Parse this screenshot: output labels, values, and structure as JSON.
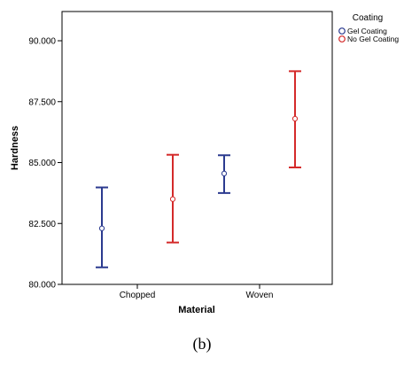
{
  "chart_data": {
    "type": "errorbar",
    "xlabel": "Material",
    "ylabel": "Hardness",
    "categories": [
      "Chopped",
      "Woven"
    ],
    "ylim": [
      80,
      91.2
    ],
    "y_ticks": [
      80,
      82.5,
      85,
      87.5,
      90
    ],
    "y_tick_labels": [
      "80.000",
      "82.500",
      "85.000",
      "87.500",
      "90.000"
    ],
    "grid": false,
    "legend": {
      "title": "Coating",
      "placement": "right-outside-top",
      "entries": [
        "Gel Coating",
        "No Gel Coating"
      ]
    },
    "series": [
      {
        "name": "Gel Coating",
        "color": "#2b3a8f",
        "mean": [
          82.3,
          84.55
        ],
        "lower": [
          80.7,
          83.75
        ],
        "upper": [
          83.98,
          85.3
        ]
      },
      {
        "name": "No Gel Coating",
        "color": "#d42a2a",
        "mean": [
          83.5,
          86.8
        ],
        "lower": [
          81.72,
          84.8
        ],
        "upper": [
          85.32,
          88.75
        ]
      }
    ]
  },
  "caption": "(b)"
}
